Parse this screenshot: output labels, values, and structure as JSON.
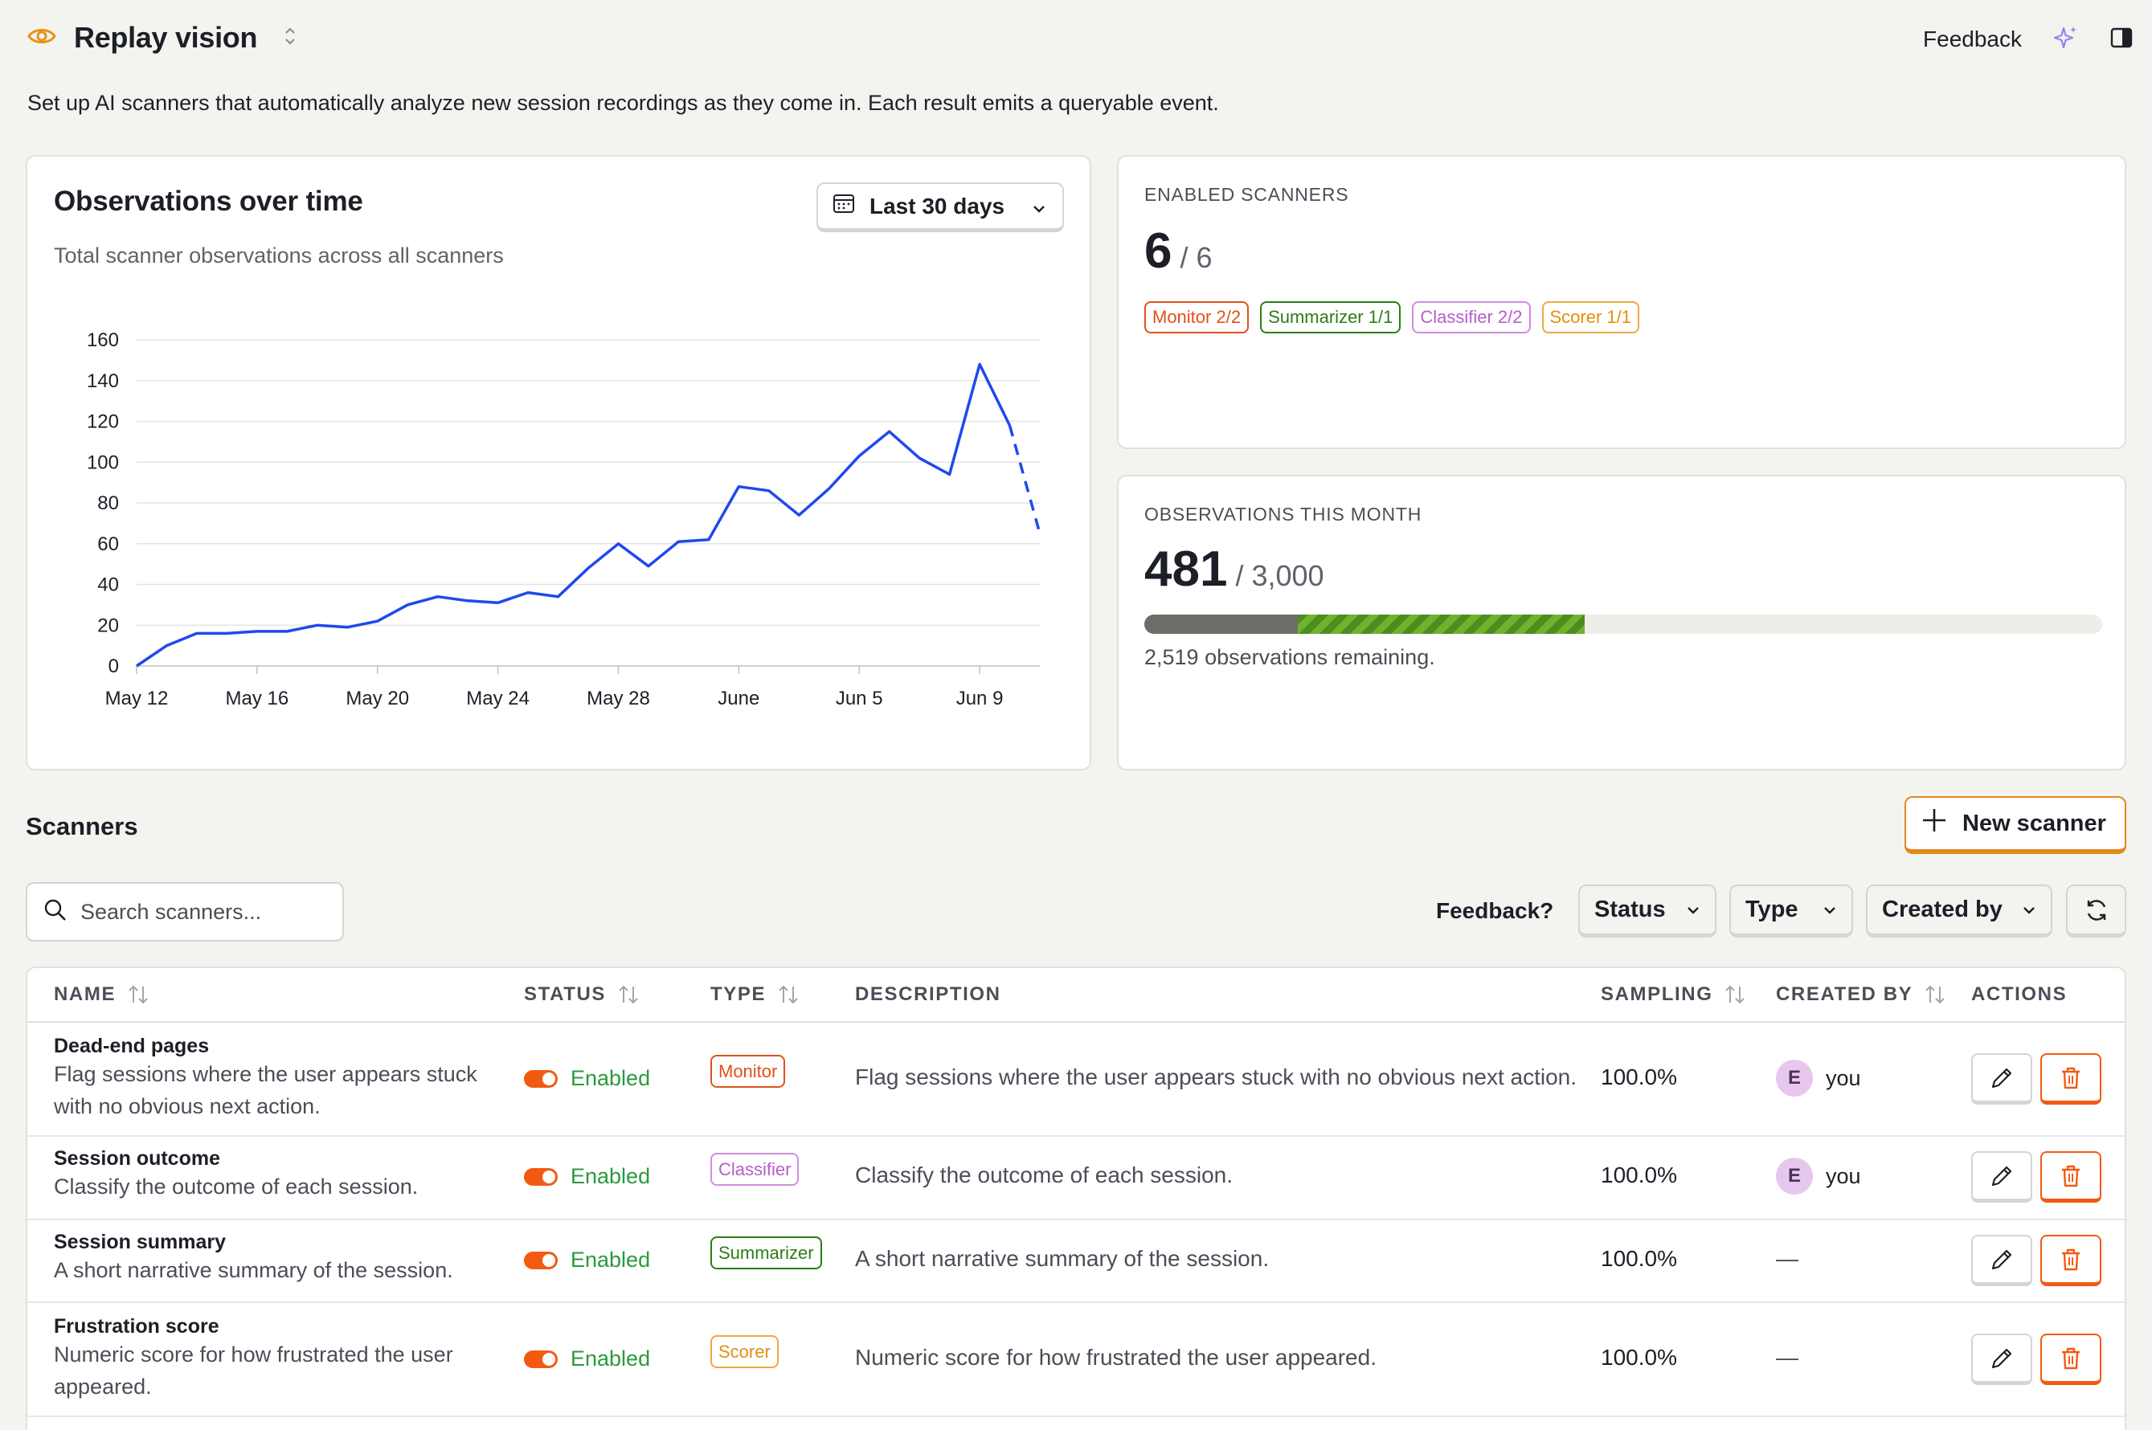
{
  "header": {
    "title": "Replay vision",
    "feedback_label": "Feedback",
    "subtitle": "Set up AI scanners that automatically analyze new session recordings as they come in. Each result emits a queryable event."
  },
  "chart": {
    "title": "Observations over time",
    "subtitle": "Total scanner observations across all scanners",
    "date_range": "Last 30 days"
  },
  "chart_data": {
    "type": "line",
    "title": "Observations over time",
    "subtitle": "Total scanner observations across all scanners",
    "xlabel": "",
    "ylabel": "",
    "ylim": [
      0,
      160
    ],
    "y_ticks": [
      0,
      20,
      40,
      60,
      80,
      100,
      120,
      140,
      160
    ],
    "x_ticks": [
      "May 12",
      "May 16",
      "May 20",
      "May 24",
      "May 28",
      "June",
      "Jun 5",
      "Jun 9"
    ],
    "grid": true,
    "color": "#1f48f0",
    "x": [
      "May 12",
      "May 13",
      "May 14",
      "May 15",
      "May 16",
      "May 17",
      "May 18",
      "May 19",
      "May 20",
      "May 21",
      "May 22",
      "May 23",
      "May 24",
      "May 25",
      "May 26",
      "May 27",
      "May 28",
      "May 29",
      "May 30",
      "May 31",
      "June",
      "Jun 2",
      "Jun 3",
      "Jun 4",
      "Jun 5",
      "Jun 6",
      "Jun 7",
      "Jun 8",
      "Jun 9",
      "Jun 10",
      "Jun 11"
    ],
    "values": [
      0,
      10,
      16,
      16,
      17,
      17,
      20,
      19,
      22,
      30,
      34,
      32,
      31,
      36,
      34,
      48,
      60,
      49,
      61,
      62,
      88,
      86,
      74,
      87,
      103,
      115,
      102,
      94,
      148,
      118,
      65
    ],
    "dashed_from_index": 29
  },
  "enabled": {
    "label": "ENABLED SCANNERS",
    "value": "6",
    "total": "/ 6",
    "badges": [
      {
        "label": "Monitor 2/2",
        "color": "#e0511b"
      },
      {
        "label": "Summarizer 1/1",
        "color": "#2c7d15"
      },
      {
        "label": "Classifier 2/2",
        "color": "#b75ec9"
      },
      {
        "label": "Scorer 1/1",
        "color": "#e38f0f"
      }
    ]
  },
  "observations": {
    "label": "OBSERVATIONS THIS MONTH",
    "value": "481",
    "total": "/ 3,000",
    "used_fraction": 0.16,
    "month_fraction": 0.3,
    "remaining": "2,519 observations remaining."
  },
  "scanners": {
    "title": "Scanners",
    "new_button": "New scanner",
    "search_placeholder": "Search scanners...",
    "feedback_label": "Feedback?",
    "filters": {
      "status": "Status",
      "type": "Type",
      "created_by": "Created by"
    },
    "columns": {
      "name": "NAME",
      "status": "STATUS",
      "type": "TYPE",
      "description": "DESCRIPTION",
      "sampling": "SAMPLING",
      "created_by": "CREATED BY",
      "actions": "ACTIONS"
    },
    "rows": [
      {
        "name": "Dead-end pages",
        "desc": "Flag sessions where the user appears stuck with no obvious next action.",
        "status": "Enabled",
        "type": "Monitor",
        "type_color": "#e0511b",
        "description": "Flag sessions where the user appears stuck with no obvious next action.",
        "sampling": "100.0%",
        "avatar": "E",
        "creator": "you"
      },
      {
        "name": "Session outcome",
        "desc": "Classify the outcome of each session.",
        "status": "Enabled",
        "type": "Classifier",
        "type_color": "#b75ec9",
        "description": "Classify the outcome of each session.",
        "sampling": "100.0%",
        "avatar": "E",
        "creator": "you"
      },
      {
        "name": "Session summary",
        "desc": "A short narrative summary of the session.",
        "status": "Enabled",
        "type": "Summarizer",
        "type_color": "#2c7d15",
        "description": "A short narrative summary of the session.",
        "sampling": "100.0%",
        "avatar": "",
        "creator": "—"
      },
      {
        "name": "Frustration score",
        "desc": "Numeric score for how frustrated the user appeared.",
        "status": "Enabled",
        "type": "Scorer",
        "type_color": "#e38f0f",
        "description": "Numeric score for how frustrated the user appeared.",
        "sampling": "100.0%",
        "avatar": "",
        "creator": "—"
      }
    ]
  }
}
